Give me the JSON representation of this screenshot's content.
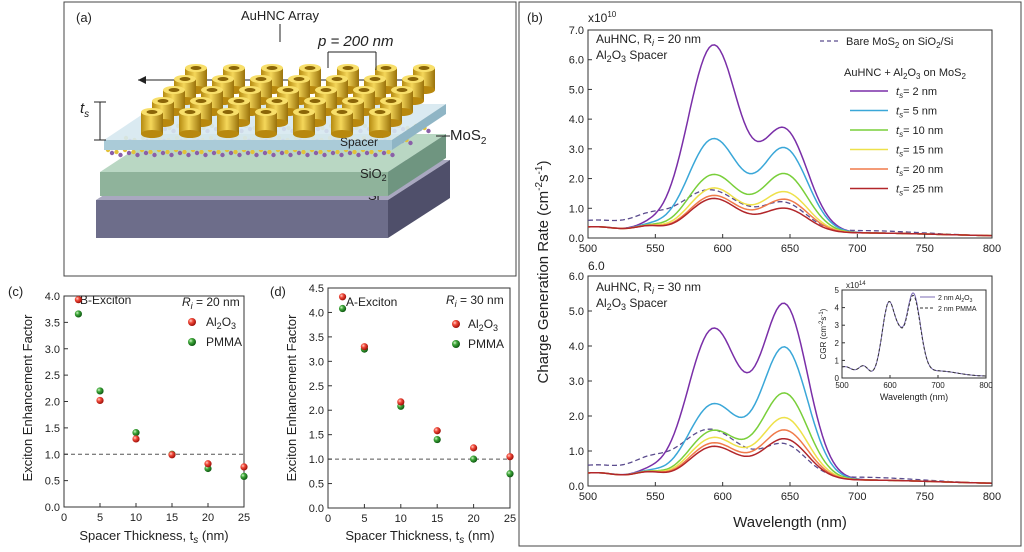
{
  "chart_data": [
    {
      "panel": "(a)",
      "type": "diagram",
      "title": "AuHNC Array",
      "period_label": "p = 200 nm",
      "thickness_label": "t",
      "thickness_sub": "s",
      "layers": [
        "Spacer",
        "MoS",
        "SiO",
        "Si"
      ],
      "mos2_label": "MoS",
      "sub2": "2"
    },
    {
      "panel": "(b)",
      "type": "line",
      "ylabel": "Charge Generation Rate (cm",
      "ylabel_exp1": "-2",
      "ylabel_mid": "s",
      "ylabel_exp2": "-1",
      "ylabel_end": ")",
      "xlabel": "Wavelength (nm)",
      "scale_label": "x10",
      "scale_exp": "10",
      "xlim": [
        500,
        800
      ],
      "xticks": [
        500,
        550,
        600,
        650,
        700,
        750,
        800
      ],
      "legend_bare": "Bare MoS",
      "legend_bare_end": " on SiO",
      "legend_bare_end2": "/Si",
      "legend_group": "AuHNC + Al",
      "legend_group_mid": "O",
      "legend_group_end": " on MoS",
      "series_colors": [
        "#7a2fa8",
        "#3aa7d8",
        "#79cf3a",
        "#eee14a",
        "#f07a4a",
        "#b2262a"
      ],
      "series_names": [
        "= 2 nm",
        "= 5 nm",
        "= 10 nm",
        "= 15 nm",
        "= 20 nm",
        "= 25 nm"
      ],
      "bare_color": "#5b4c8e",
      "top": {
        "label1": "AuHNC, R",
        "label1_sub": "i",
        "label1_end": " = 20 nm",
        "label2": "Al",
        "label2_mid": "O",
        "label2_end": " Spacer",
        "ylim": [
          0,
          7
        ],
        "yticks": [
          "0.0",
          "1.0",
          "2.0",
          "3.0",
          "4.0",
          "5.0",
          "6.0",
          "7.0"
        ],
        "peaks": [
          6.4,
          3.25,
          2.05,
          1.6,
          1.35,
          1.25
        ],
        "peaks2": [
          3.45,
          2.85,
          2.0,
          1.4,
          1.15,
          0.85
        ],
        "bare_peaks": [
          1.72,
          1.15
        ]
      },
      "bottom": {
        "label1": "AuHNC, R",
        "label1_sub": "i",
        "label1_end": " = 30 nm",
        "label2": "Al",
        "label2_mid": "O",
        "label2_end": " Spacer",
        "ylim": [
          0,
          6
        ],
        "yticks": [
          "0.0",
          "1.0",
          "2.0",
          "3.0",
          "4.0",
          "5.0",
          "6.0"
        ],
        "peaks": [
          4.4,
          2.25,
          1.5,
          1.3,
          1.15,
          1.05
        ],
        "peaks2": [
          5.0,
          3.8,
          2.5,
          1.8,
          1.45,
          1.2
        ],
        "bare_peaks": [
          1.72,
          1.15
        ]
      },
      "inset": {
        "scale_label": "x10",
        "scale_exp": "14",
        "ylabel": "CGR (cm",
        "ylabel_exp1": "-2",
        "ylabel_mid": "s",
        "ylabel_exp2": "-1",
        "ylabel_end": ")",
        "xlabel": "Wavelength (nm)",
        "yticks": [
          "0",
          "1",
          "2",
          "3",
          "4",
          "5"
        ],
        "xticks": [
          "500",
          "600",
          "700",
          "800"
        ],
        "legend1": "2 nm Al",
        "legend1_mid": "O",
        "legend2": "2 nm PMMA"
      }
    },
    {
      "panel": "(c)",
      "type": "scatter",
      "label": "B-Exciton",
      "radius_label": "R",
      "radius_sub": "i",
      "radius_end": " = 20 nm",
      "xlabel": "Spacer Thickness, t",
      "xlabel_sub": "s",
      "xlabel_end": " (nm)",
      "ylabel": "Exciton Enhancement Factor",
      "xlim": [
        0,
        25
      ],
      "ylim": [
        0,
        4
      ],
      "xticks": [
        0,
        5,
        10,
        15,
        20,
        25
      ],
      "yticks": [
        "0.0",
        "0.5",
        "1.0",
        "1.5",
        "2.0",
        "2.5",
        "3.0",
        "3.5",
        "4.0"
      ],
      "legend": [
        "Al",
        "PMMA"
      ],
      "x": [
        2,
        5,
        10,
        15,
        20,
        25
      ],
      "al2o3": [
        3.93,
        2.02,
        1.29,
        0.99,
        0.82,
        0.76
      ],
      "pmma": [
        3.66,
        2.2,
        1.41,
        1.0,
        0.73,
        0.58
      ]
    },
    {
      "panel": "(d)",
      "type": "scatter",
      "label": "A-Exciton",
      "radius_label": "R",
      "radius_sub": "i",
      "radius_end": " = 30 nm",
      "xlabel": "Spacer Thickness, t",
      "xlabel_sub": "s",
      "xlabel_end": " (nm)",
      "ylabel": "Exciton Enhancement Factor",
      "xlim": [
        0,
        25
      ],
      "ylim": [
        0,
        4.5
      ],
      "xticks": [
        0,
        5,
        10,
        15,
        20,
        25
      ],
      "yticks": [
        "0.0",
        "0.5",
        "1.0",
        "1.5",
        "2.0",
        "2.5",
        "3.0",
        "3.5",
        "4.0",
        "4.5"
      ],
      "legend": [
        "Al",
        "PMMA"
      ],
      "x": [
        2,
        5,
        10,
        15,
        20,
        25
      ],
      "al2o3": [
        4.32,
        3.3,
        2.17,
        1.58,
        1.23,
        1.05
      ],
      "pmma": [
        4.08,
        3.25,
        2.08,
        1.4,
        1.0,
        0.7
      ]
    }
  ]
}
